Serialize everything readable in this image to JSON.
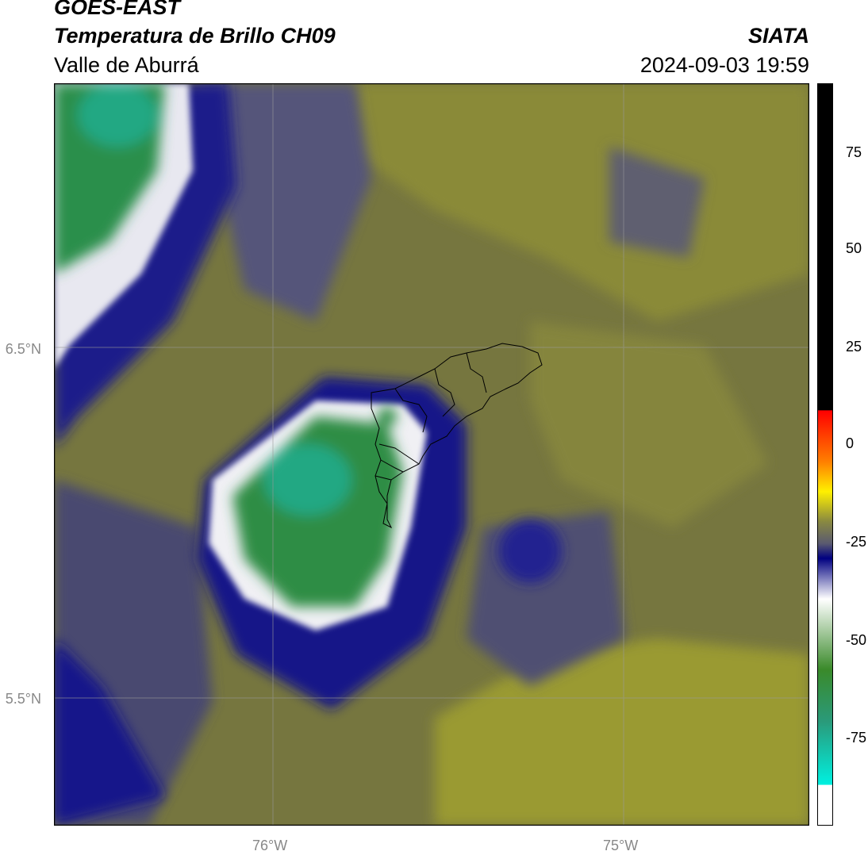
{
  "header": {
    "satellite": "GOES-EAST",
    "product": "Temperatura de Brillo CH09",
    "region": "Valle de Aburrá",
    "organization": "SIATA",
    "timestamp": "2024-09-03 19:59"
  },
  "map": {
    "lat_labels": [
      {
        "label": "6.5°N",
        "lat": 6.5
      },
      {
        "label": "5.5°N",
        "lat": 5.5
      }
    ],
    "lon_labels": [
      {
        "label": "76°W",
        "lon": -76
      },
      {
        "label": "75°W",
        "lon": -75
      }
    ],
    "gridlines": true
  },
  "colorbar": {
    "ticks": [
      "75",
      "50",
      "25",
      "0",
      "-25",
      "-50",
      "-75"
    ],
    "tick_values": [
      75,
      50,
      25,
      0,
      -25,
      -50,
      -75
    ],
    "range": [
      -95,
      90
    ],
    "colors": {
      "black": "#000000",
      "red": "#ff1a00",
      "orange": "#ff8000",
      "yellow": "#fff200",
      "olive": "#8a8a3a",
      "navy": "#000080",
      "white": "#ffffff",
      "green": "#3a8a2a",
      "cyan": "#00e5e5"
    }
  }
}
